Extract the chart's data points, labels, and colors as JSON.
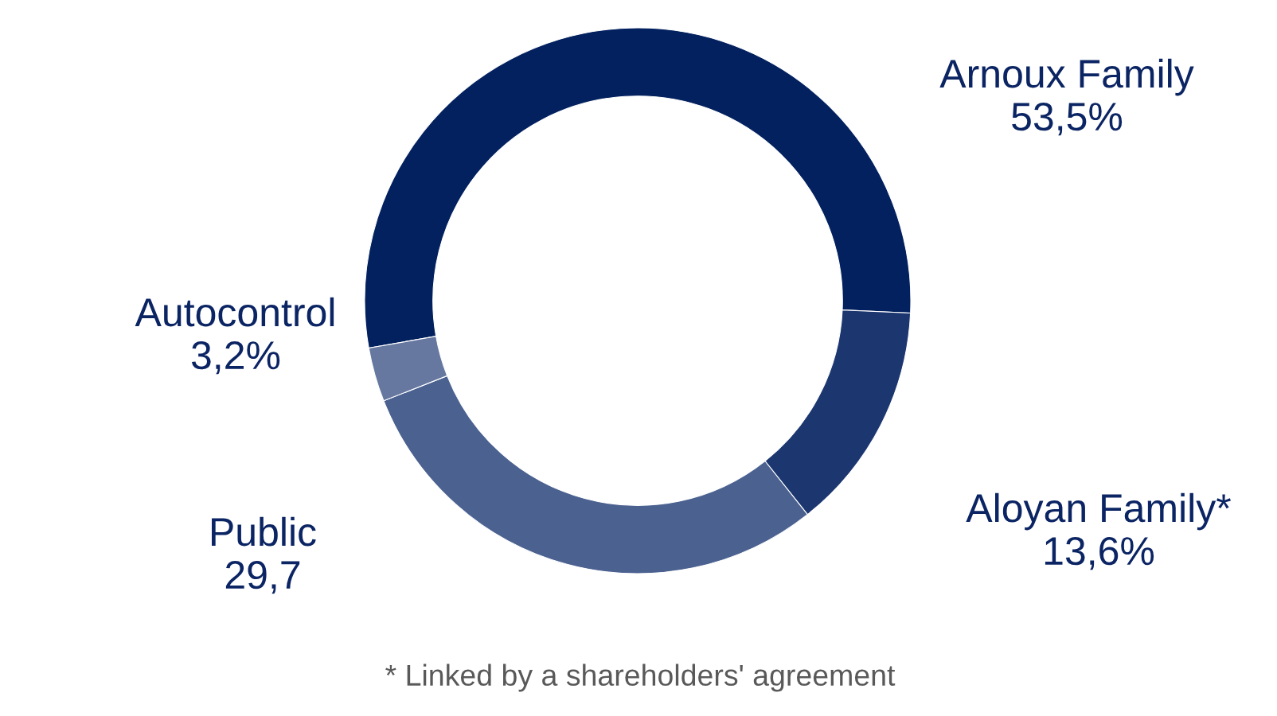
{
  "chart_data": {
    "type": "donut",
    "categories": [
      "Arnoux Family",
      "Aloyan Family*",
      "Public",
      "Autocontrol"
    ],
    "values": [
      53.5,
      13.6,
      29.7,
      3.2
    ],
    "colors": [
      "#03215f",
      "#1c3670",
      "#4b6190",
      "#6678a0"
    ],
    "value_labels": [
      "53,5%",
      "13,6%",
      "29,7",
      "3,2%"
    ],
    "annotations": [
      "* Linked by a shareholders' agreement"
    ]
  }
}
